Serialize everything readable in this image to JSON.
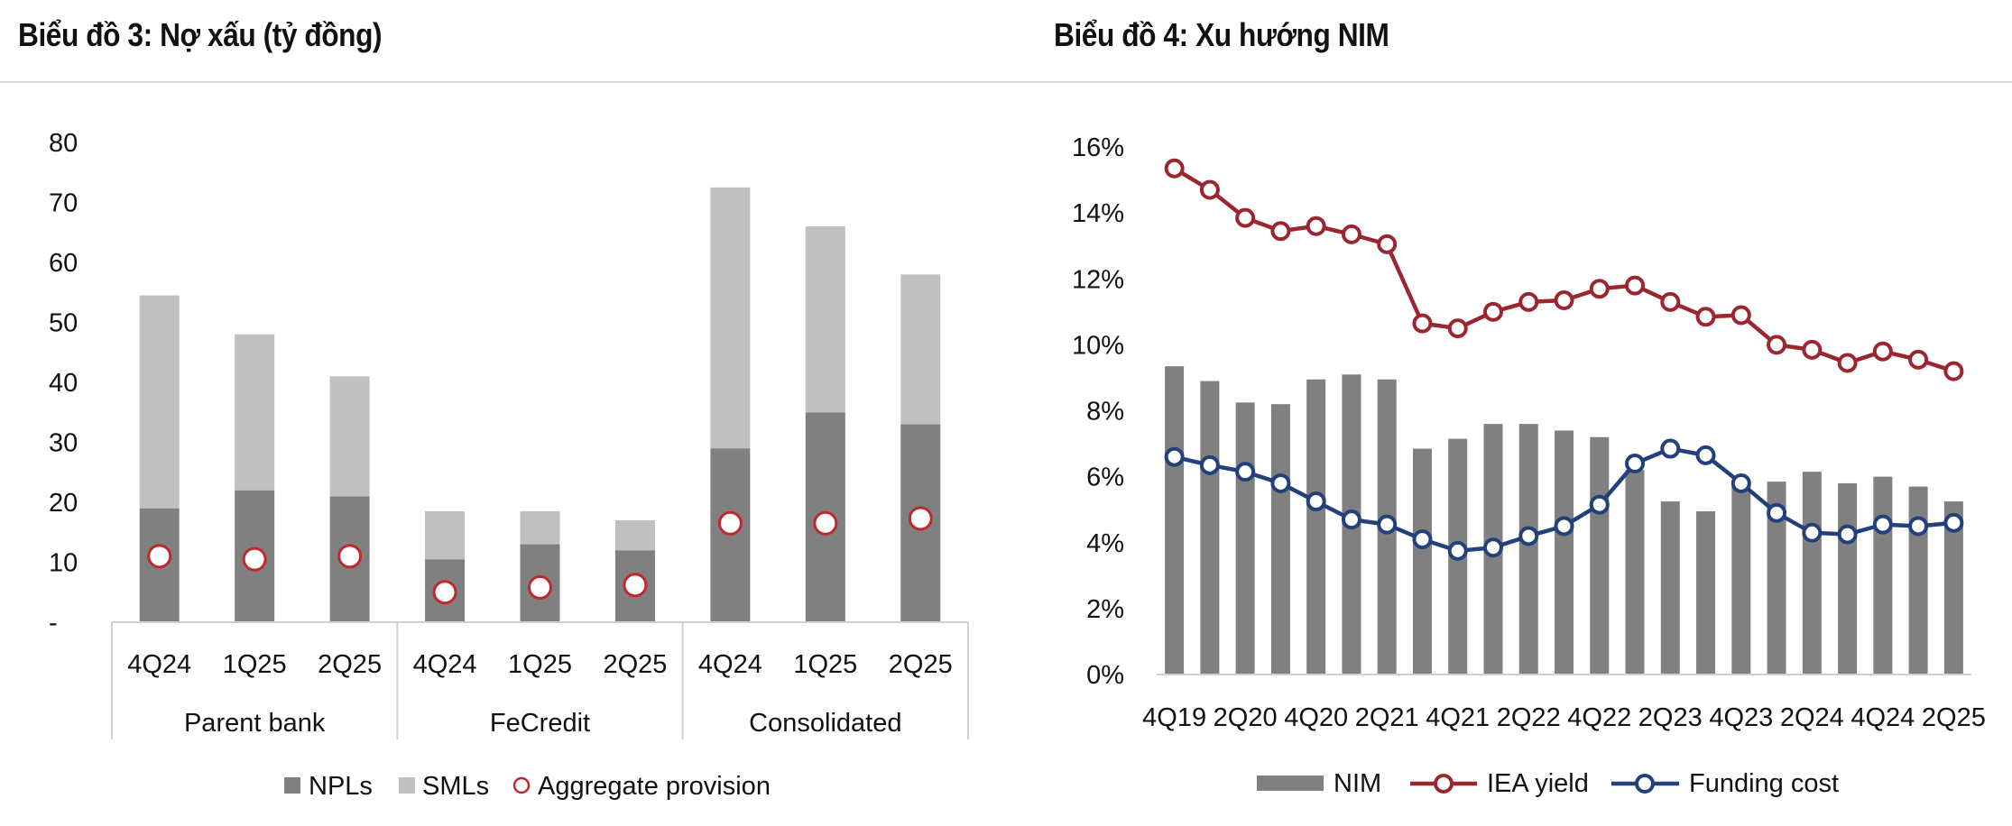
{
  "titles": {
    "left": "Biểu đồ 3: Nợ xấu (tỷ đồng)",
    "right": "Biểu đồ 4: Xu hướng NIM"
  },
  "chart_data": [
    {
      "type": "bar",
      "stacked": true,
      "title": "Biểu đồ 3: Nợ xấu (tỷ đồng)",
      "groups": [
        "Parent bank",
        "FeCredit",
        "Consolidated"
      ],
      "categories": [
        "4Q24",
        "1Q25",
        "2Q25",
        "4Q24",
        "1Q25",
        "2Q25",
        "4Q24",
        "1Q25",
        "2Q25"
      ],
      "group_of_category": [
        0,
        0,
        0,
        1,
        1,
        1,
        2,
        2,
        2
      ],
      "yticks": [
        "-",
        "10",
        "20",
        "30",
        "40",
        "50",
        "60",
        "70",
        "80"
      ],
      "ylim": [
        0,
        80
      ],
      "series": [
        {
          "name": "NPLs",
          "type": "bar",
          "color": "#808080",
          "values": [
            19,
            22,
            21,
            10.5,
            13,
            12,
            29,
            35,
            33
          ]
        },
        {
          "name": "SMLs",
          "type": "bar",
          "color": "#c0c0c0",
          "values": [
            35.5,
            26,
            20,
            8,
            5.5,
            5,
            43.5,
            31,
            25
          ]
        },
        {
          "name": "Aggregate provision",
          "type": "marker",
          "color": "#c0282d",
          "values": [
            11,
            10.5,
            11,
            5,
            5.8,
            6.2,
            16.5,
            16.5,
            17.3
          ]
        }
      ],
      "legend": [
        "NPLs",
        "SMLs",
        "Aggregate provision"
      ],
      "legend_position": "bottom"
    },
    {
      "type": "bar+line",
      "title": "Biểu đồ 4: Xu hướng NIM",
      "x": [
        "4Q19",
        "1Q20",
        "2Q20",
        "3Q20",
        "4Q20",
        "1Q21",
        "2Q21",
        "3Q21",
        "4Q21",
        "1Q22",
        "2Q22",
        "3Q22",
        "4Q22",
        "1Q23",
        "2Q23",
        "3Q23",
        "4Q23",
        "1Q24",
        "2Q24",
        "3Q24",
        "4Q24",
        "1Q25",
        "2Q25"
      ],
      "xtick_labels": [
        "4Q19",
        "2Q20",
        "4Q20",
        "2Q21",
        "4Q21",
        "2Q22",
        "4Q22",
        "2Q23",
        "4Q23",
        "2Q24",
        "4Q24",
        "2Q25"
      ],
      "yticks": [
        "0%",
        "2%",
        "4%",
        "6%",
        "8%",
        "10%",
        "12%",
        "14%",
        "16%"
      ],
      "ylim": [
        0,
        16
      ],
      "series": [
        {
          "name": "NIM",
          "type": "bar",
          "color": "#808080",
          "values": [
            9.35,
            8.9,
            8.25,
            8.2,
            8.95,
            9.1,
            8.95,
            6.85,
            7.15,
            7.6,
            7.6,
            7.4,
            7.2,
            6.2,
            5.25,
            4.95,
            5.8,
            5.85,
            6.15,
            5.8,
            6.0,
            5.7,
            5.25
          ]
        },
        {
          "name": "IEA yield",
          "type": "line",
          "color": "#9b2630",
          "values": [
            15.35,
            14.7,
            13.85,
            13.45,
            13.6,
            13.35,
            13.05,
            10.65,
            10.5,
            11.0,
            11.3,
            11.35,
            11.7,
            11.8,
            11.3,
            10.85,
            10.9,
            10.0,
            9.85,
            9.45,
            9.8,
            9.55,
            9.2
          ]
        },
        {
          "name": "Funding cost",
          "type": "line",
          "color": "#24407a",
          "values": [
            6.6,
            6.35,
            6.15,
            5.8,
            5.25,
            4.7,
            4.55,
            4.1,
            3.75,
            3.85,
            4.2,
            4.5,
            5.15,
            6.4,
            6.85,
            6.65,
            5.8,
            4.9,
            4.3,
            4.25,
            4.55,
            4.5,
            4.6
          ]
        }
      ],
      "legend": [
        "NIM",
        "IEA yield",
        "Funding cost"
      ],
      "legend_position": "bottom"
    }
  ]
}
